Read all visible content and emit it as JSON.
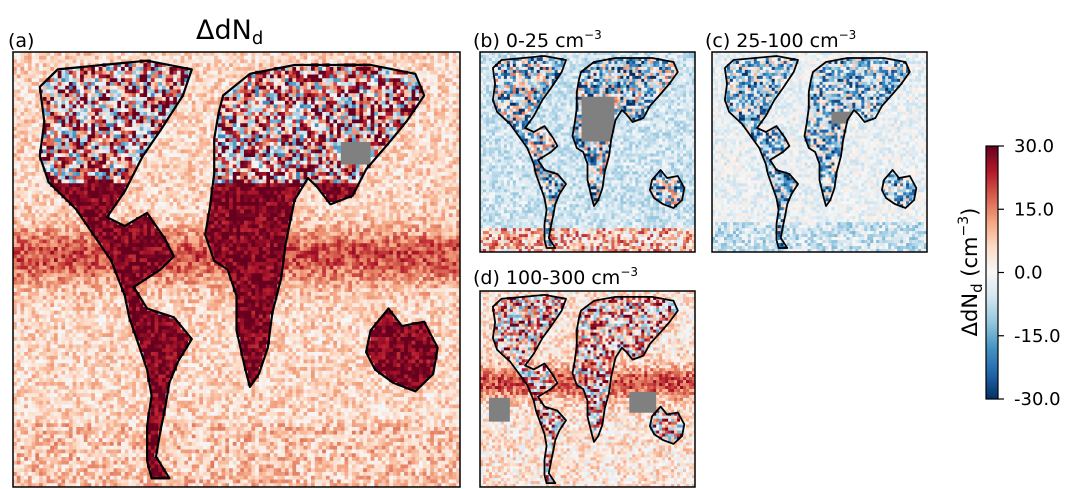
{
  "chart_data": {
    "type": "heatmap",
    "colormap": "RdBu_r",
    "missing_color": "#808080",
    "coastline_color": "#000000",
    "panels": [
      {
        "id": "a",
        "label": "(a)",
        "title": "ΔdN",
        "title_sub": "d"
      },
      {
        "id": "b",
        "label": "(b) 0-25 cm",
        "label_sup": "−3"
      },
      {
        "id": "c",
        "label": "(c) 25-100 cm",
        "label_sup": "−3"
      },
      {
        "id": "d",
        "label": "(d) 100-300 cm",
        "label_sup": "−3"
      }
    ],
    "colorbar": {
      "range": [
        -30,
        30
      ],
      "ticks": [
        "30.0",
        "15.0",
        "0.0",
        "-15.0",
        "-30.0"
      ],
      "label": "ΔdN",
      "label_sub": "d",
      "label_unit": " (cm",
      "label_unit_sup": "−3",
      "label_close": ")"
    }
  }
}
